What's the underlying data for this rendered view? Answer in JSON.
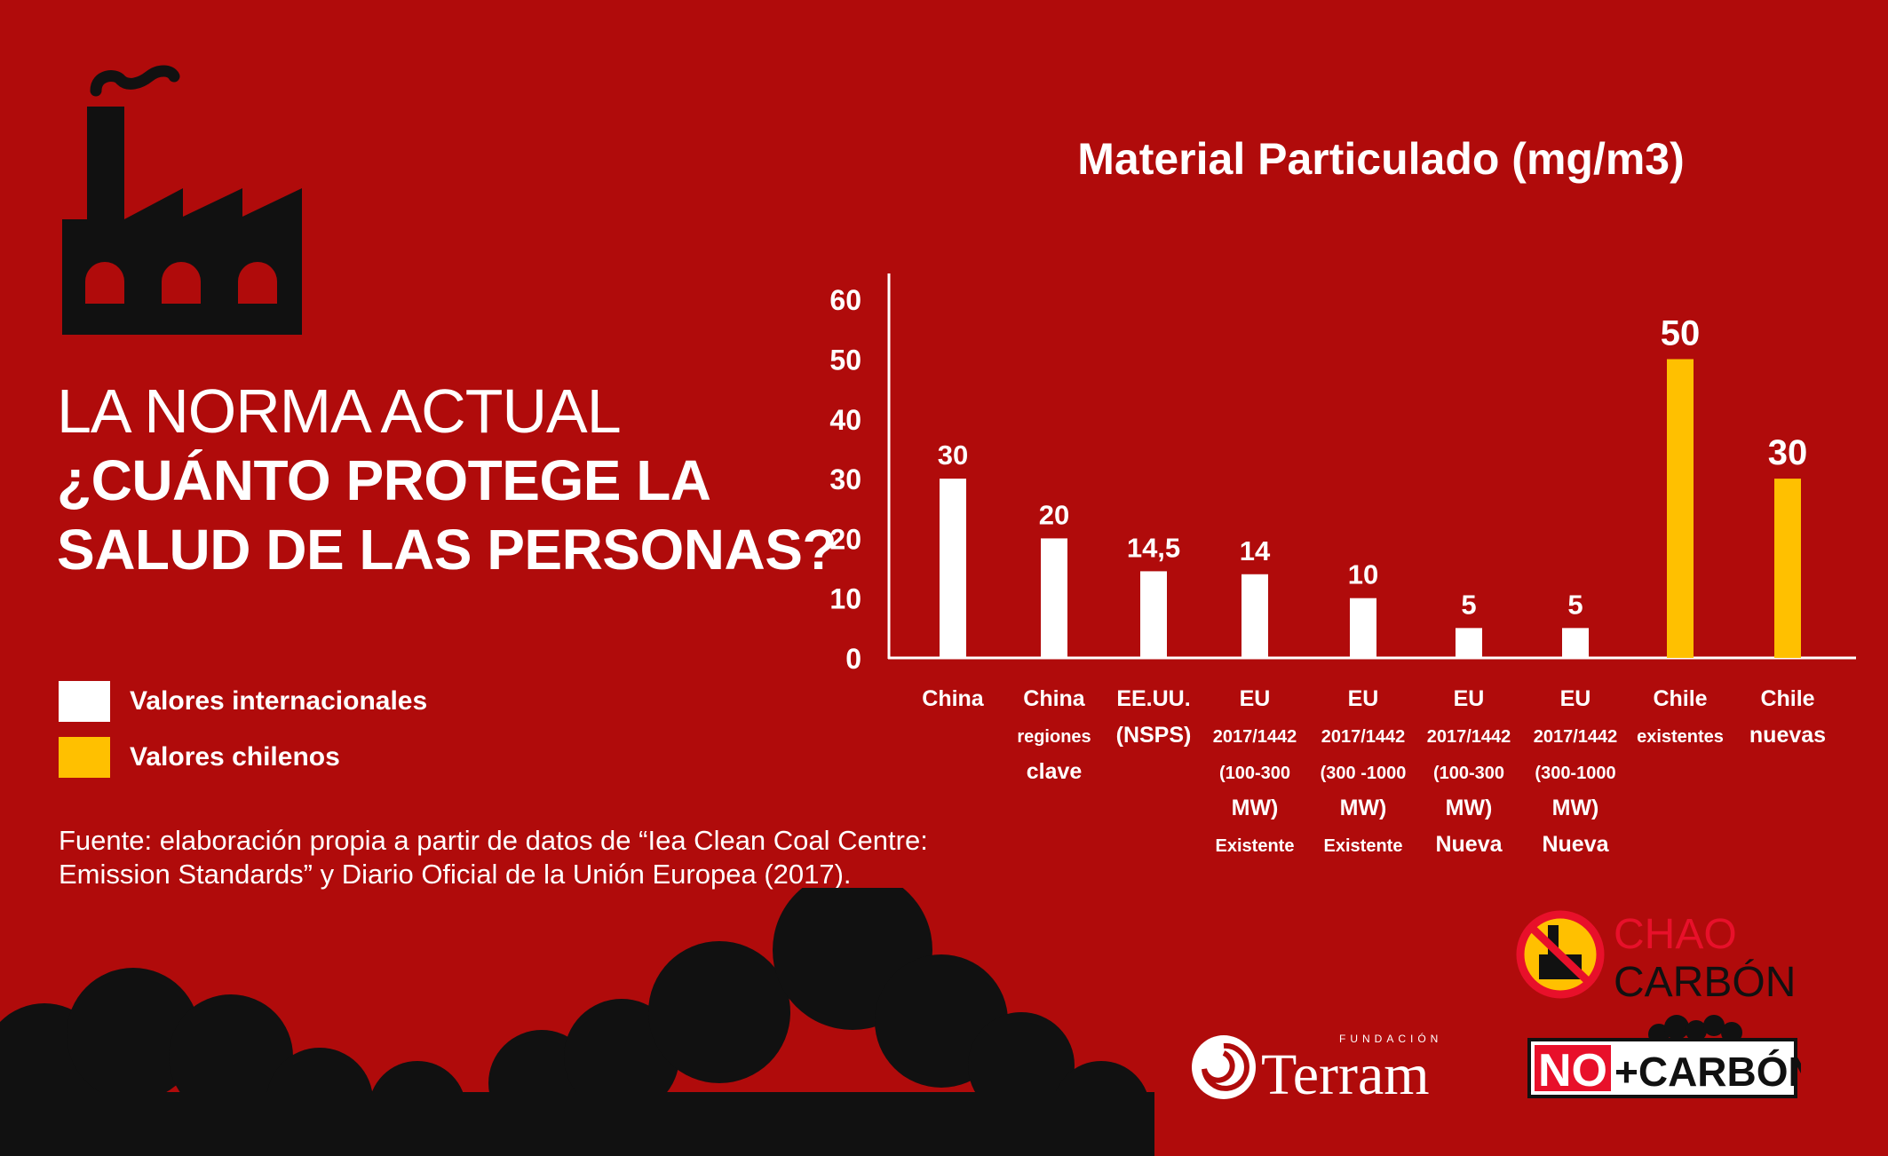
{
  "headline": {
    "line1": "LA NORMA ACTUAL",
    "line2": "¿CUÁNTO PROTEGE LA",
    "line3": "SALUD DE LAS PERSONAS?"
  },
  "legend": [
    {
      "label": "Valores internacionales",
      "color": "#ffffff"
    },
    {
      "label": "Valores chilenos",
      "color": "#ffc000"
    }
  ],
  "source": {
    "line1": "Fuente: elaboración propia a partir de datos de “Iea Clean Coal Centre:",
    "line2": "Emission Standards” y Diario Oficial de la Unión Europea (2017)."
  },
  "logos": {
    "chao_line1": "CHAO",
    "chao_line2": "CARBÓN",
    "terram_small": "FUNDACIÓN",
    "terram_name": "Terram",
    "nomas_no": "NO",
    "nomas_carbon": "+CARBÓN"
  },
  "colors": {
    "background": "#b00b0b",
    "international": "#ffffff",
    "chilean": "#ffc000",
    "dark": "#111111"
  },
  "chart_data": {
    "type": "bar",
    "title": "Material Particulado (mg/m3)",
    "categories": [
      [
        "China"
      ],
      [
        "China",
        "regiones",
        "clave"
      ],
      [
        "EE.UU.",
        "(NSPS)"
      ],
      [
        "EU",
        "2017/1442",
        "(100-300",
        "MW)",
        "Existente"
      ],
      [
        "EU",
        "2017/1442",
        "(300 -1000",
        "MW)",
        "Existente"
      ],
      [
        "EU",
        "2017/1442",
        "(100-300",
        "MW)",
        "Nueva"
      ],
      [
        "EU",
        "2017/1442",
        "(300-1000",
        "MW)",
        "Nueva"
      ],
      [
        "Chile",
        "existentes"
      ],
      [
        "Chile",
        "nuevas"
      ]
    ],
    "values": [
      30,
      20,
      14.5,
      14,
      10,
      5,
      5,
      50,
      30
    ],
    "value_labels": [
      "30",
      "20",
      "14,5",
      "14",
      "10",
      "5",
      "5",
      "50",
      "30"
    ],
    "groups": [
      "international",
      "international",
      "international",
      "international",
      "international",
      "international",
      "international",
      "chilean",
      "chilean"
    ],
    "yticks": [
      "0",
      "10",
      "20",
      "30",
      "40",
      "50",
      "60"
    ],
    "ylim": [
      0,
      60
    ],
    "grid": false,
    "legend_position": "bottom-left"
  }
}
